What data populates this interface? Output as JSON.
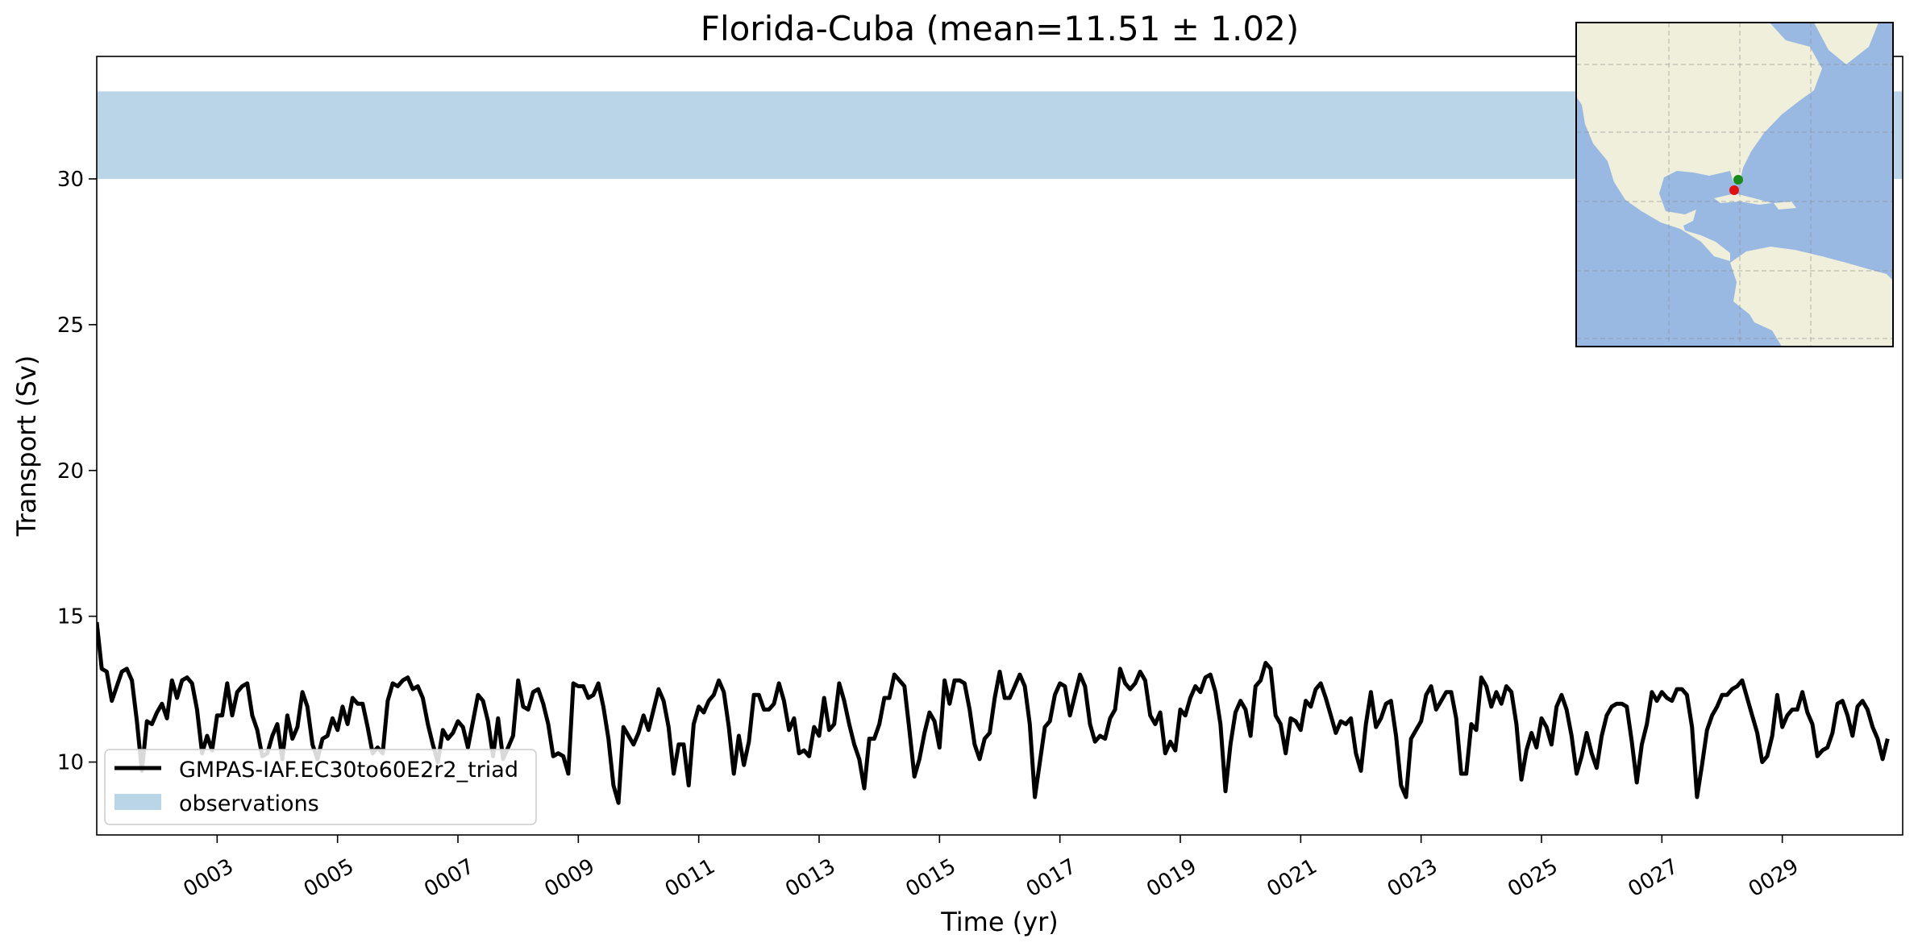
{
  "chart_data": {
    "type": "line",
    "title": "Florida-Cuba (mean=11.51 ± 1.02)",
    "xlabel": "Time (yr)",
    "ylabel": "Transport (Sv)",
    "xlim": [
      1.0,
      31.0
    ],
    "ylim": [
      7.5,
      34.2
    ],
    "xticks": [
      "0003",
      "0005",
      "0007",
      "0009",
      "0011",
      "0013",
      "0015",
      "0017",
      "0019",
      "0021",
      "0023",
      "0025",
      "0027",
      "0029"
    ],
    "xtick_values": [
      3,
      5,
      7,
      9,
      11,
      13,
      15,
      17,
      19,
      21,
      23,
      25,
      27,
      29
    ],
    "yticks": [
      "10",
      "15",
      "20",
      "25",
      "30"
    ],
    "ytick_values": [
      10,
      15,
      20,
      25,
      30
    ],
    "grid": false,
    "legend_placement": "lower-left",
    "observations": {
      "name": "observations",
      "ymin": 30.0,
      "ymax": 33.0,
      "color": "#bad5e8"
    },
    "series": [
      {
        "name": "GMPAS-IAF.EC30to60E2r2_triad",
        "color": "#000000",
        "monthly_values": [
          14.8,
          13.2,
          13.1,
          12.1,
          12.6,
          13.1,
          13.2,
          12.8,
          11.4,
          9.7,
          11.4,
          11.3,
          11.7,
          12.0,
          11.5,
          12.8,
          12.2,
          12.8,
          12.9,
          12.7,
          11.8,
          10.3,
          10.9,
          10.4,
          11.6,
          11.6,
          12.7,
          11.6,
          12.4,
          12.6,
          12.7,
          11.6,
          11.1,
          10.2,
          10.3,
          10.9,
          11.3,
          10.1,
          11.6,
          10.8,
          11.2,
          12.4,
          11.9,
          10.6,
          10.1,
          10.8,
          10.9,
          11.5,
          11.1,
          11.9,
          11.3,
          12.2,
          12.0,
          12.0,
          11.2,
          10.3,
          10.5,
          10.3,
          12.1,
          12.7,
          12.6,
          12.8,
          12.9,
          12.5,
          12.6,
          12.2,
          11.3,
          10.6,
          10.0,
          11.1,
          10.8,
          11.0,
          11.4,
          11.2,
          10.5,
          11.4,
          12.3,
          12.1,
          11.4,
          10.2,
          11.5,
          10.1,
          10.5,
          10.9,
          12.8,
          11.9,
          11.8,
          12.4,
          12.5,
          12.0,
          11.3,
          10.2,
          10.3,
          10.2,
          9.6,
          12.7,
          12.6,
          12.6,
          12.2,
          12.3,
          12.7,
          11.9,
          10.8,
          9.2,
          8.6,
          11.2,
          10.9,
          10.6,
          11.0,
          11.6,
          11.1,
          11.8,
          12.5,
          12.1,
          11.2,
          9.6,
          10.6,
          10.6,
          9.2,
          11.3,
          11.9,
          11.7,
          12.1,
          12.3,
          12.8,
          12.4,
          11.2,
          9.6,
          10.9,
          9.9,
          10.7,
          12.3,
          12.3,
          11.8,
          11.8,
          12.0,
          12.7,
          12.1,
          11.1,
          11.5,
          10.3,
          10.4,
          10.2,
          11.2,
          10.9,
          12.2,
          11.1,
          11.3,
          12.7,
          12.1,
          11.3,
          10.6,
          10.1,
          9.1,
          10.8,
          10.8,
          11.3,
          12.2,
          12.2,
          13.0,
          12.8,
          12.6,
          11.1,
          9.5,
          10.1,
          11.0,
          11.7,
          11.4,
          10.5,
          12.8,
          12.0,
          12.8,
          12.8,
          12.7,
          11.8,
          10.6,
          10.1,
          10.8,
          11.0,
          12.2,
          13.1,
          12.2,
          12.2,
          12.6,
          13.0,
          12.6,
          11.3,
          8.8,
          10.0,
          11.2,
          11.4,
          12.3,
          12.7,
          12.6,
          11.6,
          12.3,
          13.0,
          12.6,
          11.3,
          10.7,
          10.9,
          10.8,
          11.5,
          11.8,
          13.2,
          12.7,
          12.5,
          12.7,
          13.1,
          12.8,
          11.6,
          11.3,
          11.7,
          10.3,
          10.7,
          10.4,
          11.8,
          11.6,
          12.2,
          12.6,
          12.4,
          12.9,
          13.0,
          12.4,
          11.3,
          9.0,
          10.6,
          11.7,
          12.1,
          11.8,
          10.9,
          12.6,
          12.8,
          13.4,
          13.2,
          11.6,
          11.3,
          10.3,
          11.5,
          11.4,
          11.1,
          12.1,
          11.9,
          12.5,
          12.7,
          12.2,
          11.6,
          11.0,
          11.4,
          11.3,
          11.5,
          10.3,
          9.7,
          11.3,
          12.4,
          11.2,
          11.5,
          12.0,
          12.1,
          10.9,
          9.2,
          8.8,
          10.8,
          11.1,
          11.4,
          12.3,
          12.6,
          11.8,
          12.1,
          12.4,
          12.4,
          11.5,
          9.6,
          9.6,
          11.3,
          11.1,
          12.9,
          12.6,
          11.9,
          12.4,
          12.0,
          12.6,
          12.4,
          11.3,
          9.4,
          10.4,
          11.0,
          10.5,
          11.5,
          11.2,
          10.6,
          11.9,
          12.3,
          11.8,
          10.9,
          9.6,
          10.2,
          11.0,
          10.3,
          9.8,
          10.9,
          11.6,
          11.9,
          12.0,
          12.0,
          11.9,
          10.7,
          9.3,
          10.6,
          11.3,
          12.4,
          12.1,
          12.4,
          12.2,
          12.1,
          12.5,
          12.5,
          12.3,
          11.2,
          8.8,
          9.9,
          11.1,
          11.6,
          11.9,
          12.3,
          12.3,
          12.5,
          12.6,
          12.8,
          12.2,
          11.6,
          11.0,
          10.0,
          10.2,
          10.9,
          12.3,
          11.2,
          11.6,
          11.8,
          11.8,
          12.4,
          11.7,
          11.3,
          10.2,
          10.4,
          10.5,
          11.0,
          12.0,
          12.1,
          11.6,
          10.9,
          11.9,
          12.1,
          11.8,
          11.2,
          10.8,
          10.1,
          10.8
        ]
      }
    ],
    "inset_map": {
      "land_color": "#efefdb",
      "ocean_color": "#99b8e2",
      "points": [
        {
          "color": "#1a8a1a"
        },
        {
          "color": "#e01010"
        }
      ]
    }
  }
}
